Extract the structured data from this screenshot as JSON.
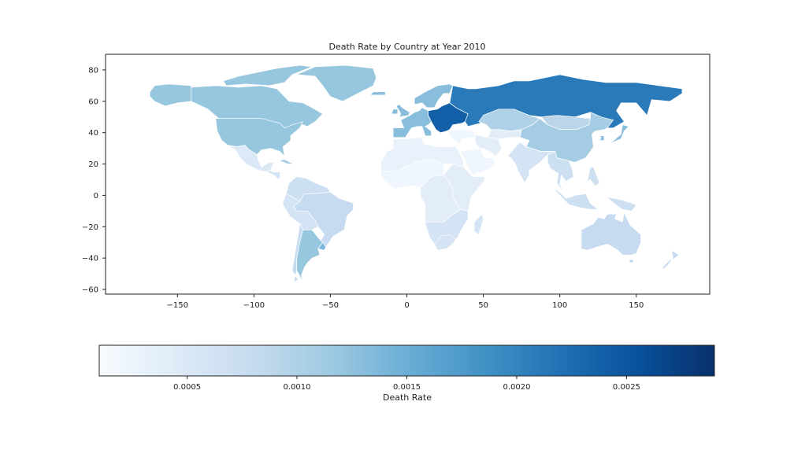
{
  "chart_data": {
    "type": "choropleth",
    "title": "Death Rate by Country at Year 2010",
    "x_ticks": [
      -150,
      -100,
      -50,
      0,
      50,
      100,
      150
    ],
    "y_ticks": [
      80,
      60,
      40,
      20,
      0,
      -20,
      -40,
      -60
    ],
    "x_tick_labels": [
      "−150",
      "−100",
      "−50",
      "0",
      "50",
      "100",
      "150"
    ],
    "y_tick_labels": [
      "80",
      "60",
      "40",
      "20",
      "0",
      "−20",
      "−40",
      "−60"
    ],
    "xlim": [
      -197,
      198
    ],
    "ylim": [
      -63,
      90
    ],
    "colorbar": {
      "label": "Death Rate",
      "cmap": "Blues",
      "range": [
        0.0001,
        0.0029
      ],
      "ticks": [
        0.0005,
        0.001,
        0.0015,
        0.002,
        0.0025
      ],
      "tick_labels": [
        "0.0005",
        "0.0010",
        "0.0015",
        "0.0020",
        "0.0025"
      ],
      "colors": [
        "#f7fbff",
        "#deebf7",
        "#c6dbef",
        "#9ecae1",
        "#6baed6",
        "#4292c6",
        "#2171b5",
        "#08519c",
        "#08306b"
      ]
    },
    "regions": [
      {
        "name": "Canada",
        "value": 0.0012
      },
      {
        "name": "United States",
        "value": 0.0012
      },
      {
        "name": "Alaska",
        "value": 0.0012
      },
      {
        "name": "Greenland",
        "value": 0.0012
      },
      {
        "name": "Mexico",
        "value": 0.0005
      },
      {
        "name": "Central America",
        "value": 0.0006
      },
      {
        "name": "Cuba",
        "value": 0.0011
      },
      {
        "name": "Colombia/Venezuela",
        "value": 0.0007
      },
      {
        "name": "Brazil",
        "value": 0.0008
      },
      {
        "name": "Peru/Bolivia",
        "value": 0.0006
      },
      {
        "name": "Argentina",
        "value": 0.0012
      },
      {
        "name": "Chile",
        "value": 0.0008
      },
      {
        "name": "Uruguay",
        "value": 0.0014
      },
      {
        "name": "Western Europe",
        "value": 0.0013
      },
      {
        "name": "Eastern Europe",
        "value": 0.0024
      },
      {
        "name": "Russia",
        "value": 0.0021
      },
      {
        "name": "Kazakhstan",
        "value": 0.001
      },
      {
        "name": "China",
        "value": 0.0011
      },
      {
        "name": "Mongolia",
        "value": 0.0009
      },
      {
        "name": "North Africa",
        "value": 0.0003
      },
      {
        "name": "Sahel",
        "value": 0.0002
      },
      {
        "name": "Central Africa",
        "value": 0.0004
      },
      {
        "name": "Southern Africa",
        "value": 0.0006
      },
      {
        "name": "Middle East",
        "value": 0.0002
      },
      {
        "name": "Iran/Central Asia",
        "value": 0.0004
      },
      {
        "name": "India",
        "value": 0.0006
      },
      {
        "name": "Southeast Asia",
        "value": 0.0007
      },
      {
        "name": "Japan",
        "value": 0.0013
      },
      {
        "name": "Australia",
        "value": 0.0008
      },
      {
        "name": "New Zealand",
        "value": 0.0008
      }
    ]
  }
}
